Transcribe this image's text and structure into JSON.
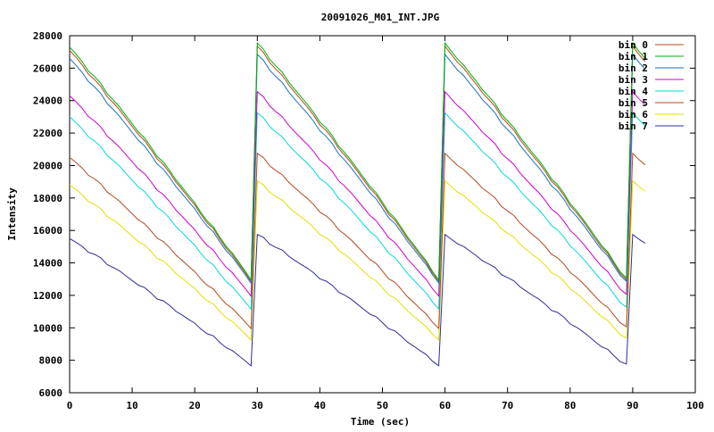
{
  "chart_data": {
    "type": "line",
    "title": "20091026_M01_INT.JPG",
    "xlabel": "Time (sec)",
    "ylabel": "Intensity",
    "xlim": [
      0,
      100
    ],
    "ylim": [
      6000,
      28000
    ],
    "xticks": [
      0,
      10,
      20,
      30,
      40,
      50,
      60,
      70,
      80,
      90,
      100
    ],
    "yticks": [
      6000,
      8000,
      10000,
      12000,
      14000,
      16000,
      18000,
      20000,
      22000,
      24000,
      26000,
      28000
    ],
    "grid": false,
    "legend_position": "top-right",
    "period_sec": 30,
    "x_end": 92,
    "series": [
      {
        "name": "bin 0",
        "color": "#b5481d",
        "start": 27100,
        "end": 12900,
        "values_sample": {
          "0": 27100,
          "29": 12900,
          "30": 27400,
          "59": 12900,
          "60": 27400,
          "89": 12900,
          "90": 27200,
          "92": 26100
        }
      },
      {
        "name": "bin 1",
        "color": "#00b000",
        "start": 27300,
        "end": 13000,
        "values_sample": {
          "0": 27300,
          "29": 13000,
          "30": 27600,
          "59": 13000,
          "60": 27600,
          "89": 13000,
          "90": 27400,
          "92": 26300
        }
      },
      {
        "name": "bin 2",
        "color": "#1e6fc0",
        "start": 26600,
        "end": 12800,
        "values_sample": {
          "0": 26600,
          "29": 12800,
          "30": 26900,
          "59": 12800,
          "60": 26900,
          "89": 12800,
          "90": 26800,
          "92": 25800
        }
      },
      {
        "name": "bin 3",
        "color": "#cc00cc",
        "start": 24300,
        "end": 12000,
        "values_sample": {
          "0": 24300,
          "29": 12000,
          "30": 24600,
          "59": 12000,
          "60": 24600,
          "89": 12000,
          "90": 24600,
          "92": 23600
        }
      },
      {
        "name": "bin 4",
        "color": "#00d8d8",
        "start": 23000,
        "end": 11200,
        "values_sample": {
          "0": 23000,
          "29": 11200,
          "30": 23200,
          "59": 11200,
          "60": 23200,
          "89": 11200,
          "90": 23000,
          "92": 22100
        }
      },
      {
        "name": "bin 5",
        "color": "#b5481d",
        "start": 20500,
        "end": 10000,
        "values_sample": {
          "0": 20500,
          "29": 10000,
          "30": 20700,
          "59": 10000,
          "60": 20700,
          "89": 10000,
          "90": 20700,
          "92": 19700
        }
      },
      {
        "name": "bin 6",
        "color": "#e0e000",
        "start": 18800,
        "end": 9300,
        "values_sample": {
          "0": 18800,
          "29": 9300,
          "30": 19000,
          "59": 9300,
          "60": 19000,
          "89": 9300,
          "90": 19000,
          "92": 18100
        }
      },
      {
        "name": "bin 7",
        "color": "#2c2c9c",
        "start": 15500,
        "end": 7700,
        "values_sample": {
          "0": 15500,
          "29": 7700,
          "30": 15700,
          "59": 7700,
          "60": 15700,
          "89": 7800,
          "90": 15900,
          "92": 15100
        }
      }
    ]
  }
}
